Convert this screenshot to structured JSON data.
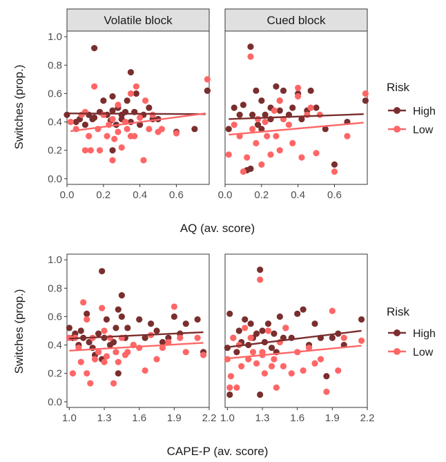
{
  "colors": {
    "high": "#7a2e2e",
    "low": "#ff6666",
    "strip_fill": "#e0e0e0",
    "panel_border": "#333333",
    "tick_text": "#4d4d4d",
    "axis_text": "#1a1a1a"
  },
  "legend_title": "Risk",
  "legend_items": [
    "High",
    "Low"
  ],
  "y_axis_label": "Switches (prop.)",
  "y_ticks": [
    "0.0",
    "0.2",
    "0.4",
    "0.6",
    "0.8",
    "1.0"
  ],
  "chart_data": [
    {
      "type": "scatter",
      "xlabel": "AQ (av. score)",
      "ylabel": "Switches (prop.)",
      "xlim": [
        0.0,
        0.78
      ],
      "ylim": [
        -0.04,
        1.04
      ],
      "x_ticks": [
        "0.0",
        "0.2",
        "0.4",
        "0.6"
      ],
      "x_tick_values": [
        0.0,
        0.2,
        0.4,
        0.6
      ],
      "facets": [
        "Volatile block",
        "Cued block"
      ],
      "legend": {
        "title": "Risk",
        "placement": "right"
      },
      "grid": false,
      "panels": [
        {
          "facet": "Volatile block",
          "series": [
            {
              "name": "High",
              "x": [
                0.0,
                0.05,
                0.07,
                0.1,
                0.12,
                0.15,
                0.15,
                0.18,
                0.2,
                0.22,
                0.24,
                0.25,
                0.25,
                0.27,
                0.28,
                0.3,
                0.3,
                0.32,
                0.33,
                0.35,
                0.35,
                0.37,
                0.38,
                0.4,
                0.42,
                0.45,
                0.47,
                0.5,
                0.6,
                0.7,
                0.77,
                0.77,
                0.14,
                0.25
              ],
              "y": [
                0.45,
                0.4,
                0.42,
                0.38,
                0.45,
                0.92,
                0.43,
                0.47,
                0.55,
                0.45,
                0.41,
                0.58,
                0.48,
                0.38,
                0.5,
                0.45,
                0.42,
                0.47,
                0.55,
                0.75,
                0.4,
                0.47,
                0.6,
                0.38,
                0.45,
                0.5,
                0.42,
                0.42,
                0.33,
                0.35,
                0.62,
                0.62,
                0.42,
                0.2
              ],
              "trend": [
                [
                  0.0,
                  0.46
                ],
                [
                  0.76,
                  0.455
                ]
              ]
            },
            {
              "name": "Low",
              "x": [
                0.02,
                0.05,
                0.08,
                0.1,
                0.12,
                0.13,
                0.15,
                0.17,
                0.18,
                0.2,
                0.22,
                0.23,
                0.25,
                0.26,
                0.28,
                0.3,
                0.32,
                0.33,
                0.35,
                0.37,
                0.38,
                0.4,
                0.42,
                0.43,
                0.45,
                0.47,
                0.5,
                0.52,
                0.6,
                0.77,
                0.1,
                0.25,
                0.35,
                0.28
              ],
              "y": [
                0.4,
                0.35,
                0.45,
                0.2,
                0.3,
                0.2,
                0.65,
                0.35,
                0.2,
                0.45,
                0.3,
                0.38,
                0.13,
                0.28,
                0.52,
                0.22,
                0.4,
                0.35,
                0.6,
                0.3,
                0.65,
                0.43,
                0.13,
                0.55,
                0.35,
                0.45,
                0.33,
                0.35,
                0.32,
                0.7,
                0.47,
                0.42,
                0.3,
                0.33
              ],
              "trend": [
                [
                  0.02,
                  0.335
                ],
                [
                  0.76,
                  0.46
                ]
              ]
            }
          ]
        },
        {
          "facet": "Cued block",
          "series": [
            {
              "name": "High",
              "x": [
                0.02,
                0.05,
                0.08,
                0.1,
                0.12,
                0.14,
                0.15,
                0.17,
                0.18,
                0.2,
                0.22,
                0.25,
                0.25,
                0.28,
                0.3,
                0.3,
                0.32,
                0.35,
                0.37,
                0.4,
                0.42,
                0.45,
                0.47,
                0.5,
                0.55,
                0.6,
                0.67,
                0.77,
                0.14,
                0.2
              ],
              "y": [
                0.35,
                0.5,
                0.45,
                0.52,
                0.06,
                0.93,
                0.45,
                0.62,
                0.38,
                0.55,
                0.45,
                0.5,
                0.42,
                0.65,
                0.48,
                0.55,
                0.62,
                0.45,
                0.5,
                0.6,
                0.42,
                0.48,
                0.62,
                0.5,
                0.35,
                0.1,
                0.4,
                0.55,
                0.07,
                0.35
              ],
              "trend": [
                [
                  0.02,
                  0.42
                ],
                [
                  0.76,
                  0.455
                ]
              ]
            },
            {
              "name": "Low",
              "x": [
                0.02,
                0.05,
                0.1,
                0.12,
                0.14,
                0.15,
                0.17,
                0.2,
                0.22,
                0.23,
                0.25,
                0.27,
                0.28,
                0.3,
                0.32,
                0.35,
                0.37,
                0.4,
                0.42,
                0.45,
                0.47,
                0.5,
                0.52,
                0.6,
                0.67,
                0.77,
                0.08,
                0.18,
                0.3,
                0.4
              ],
              "y": [
                0.17,
                0.38,
                0.05,
                0.15,
                0.86,
                0.35,
                0.25,
                0.1,
                0.4,
                0.3,
                0.17,
                0.48,
                0.3,
                0.55,
                0.42,
                0.38,
                0.25,
                0.64,
                0.15,
                0.45,
                0.5,
                0.18,
                0.45,
                0.05,
                0.3,
                0.6,
                0.3,
                0.42,
                0.2,
                0.58
              ],
              "trend": [
                [
                  0.02,
                  0.31
                ],
                [
                  0.76,
                  0.395
                ]
              ]
            }
          ]
        }
      ]
    },
    {
      "type": "scatter",
      "xlabel": "CAPE-P (av. score)",
      "ylabel": "Switches (prop.)",
      "xlim": [
        0.98,
        2.2
      ],
      "ylim": [
        -0.04,
        1.04
      ],
      "x_ticks": [
        "1.0",
        "1.3",
        "1.6",
        "1.9",
        "2.2"
      ],
      "x_tick_values": [
        1.0,
        1.3,
        1.6,
        1.9,
        2.2
      ],
      "legend": {
        "title": "Risk",
        "placement": "right"
      },
      "grid": false,
      "panels": [
        {
          "facet": "",
          "series": [
            {
              "name": "High",
              "x": [
                1.0,
                1.03,
                1.05,
                1.08,
                1.1,
                1.12,
                1.15,
                1.17,
                1.2,
                1.22,
                1.25,
                1.28,
                1.3,
                1.32,
                1.35,
                1.38,
                1.4,
                1.42,
                1.45,
                1.45,
                1.48,
                1.5,
                1.55,
                1.6,
                1.65,
                1.7,
                1.75,
                1.8,
                1.85,
                1.9,
                1.95,
                2.0,
                2.1,
                2.15,
                1.28,
                1.42
              ],
              "y": [
                0.52,
                0.45,
                0.48,
                0.4,
                0.5,
                0.45,
                0.62,
                0.42,
                0.38,
                0.33,
                0.48,
                0.92,
                0.45,
                0.58,
                0.4,
                0.42,
                0.52,
                0.2,
                0.75,
                0.6,
                0.45,
                0.52,
                0.4,
                0.58,
                0.45,
                0.55,
                0.5,
                0.42,
                0.45,
                0.6,
                0.48,
                0.55,
                0.58,
                0.35,
                0.3,
                0.65
              ],
              "trend": [
                [
                  1.0,
                  0.445
                ],
                [
                  2.15,
                  0.49
                ]
              ]
            },
            {
              "name": "Low",
              "x": [
                1.0,
                1.03,
                1.05,
                1.08,
                1.1,
                1.12,
                1.15,
                1.18,
                1.2,
                1.22,
                1.25,
                1.28,
                1.3,
                1.32,
                1.35,
                1.38,
                1.4,
                1.42,
                1.45,
                1.48,
                1.5,
                1.55,
                1.6,
                1.65,
                1.7,
                1.75,
                1.8,
                1.85,
                1.9,
                1.95,
                2.0,
                2.1,
                2.15,
                1.15,
                1.3
              ],
              "y": [
                0.45,
                0.2,
                0.45,
                0.38,
                0.28,
                0.7,
                0.58,
                0.13,
                0.45,
                0.3,
                0.35,
                0.66,
                0.28,
                0.32,
                0.45,
                0.13,
                0.35,
                0.28,
                0.45,
                0.33,
                0.35,
                0.4,
                0.38,
                0.22,
                0.47,
                0.3,
                0.38,
                0.42,
                0.67,
                0.45,
                0.35,
                0.45,
                0.33,
                0.2,
                0.5
              ],
              "trend": [
                [
                  1.0,
                  0.36
                ],
                [
                  2.15,
                  0.415
                ]
              ]
            }
          ]
        },
        {
          "facet": "",
          "series": [
            {
              "name": "High",
              "x": [
                1.0,
                1.02,
                1.05,
                1.08,
                1.1,
                1.12,
                1.15,
                1.18,
                1.2,
                1.22,
                1.25,
                1.28,
                1.3,
                1.32,
                1.35,
                1.38,
                1.4,
                1.42,
                1.45,
                1.48,
                1.5,
                1.55,
                1.6,
                1.65,
                1.7,
                1.75,
                1.8,
                1.85,
                1.9,
                1.95,
                2.0,
                2.15,
                1.02,
                1.28
              ],
              "y": [
                0.38,
                0.62,
                0.45,
                0.35,
                0.5,
                0.42,
                0.58,
                0.4,
                0.55,
                0.45,
                0.48,
                0.93,
                0.5,
                0.42,
                0.55,
                0.38,
                0.48,
                0.35,
                0.6,
                0.45,
                0.52,
                0.45,
                0.62,
                0.65,
                0.4,
                0.55,
                0.45,
                0.18,
                0.45,
                0.48,
                0.4,
                0.58,
                0.05,
                0.05
              ],
              "trend": [
                [
                  1.0,
                  0.385
                ],
                [
                  2.15,
                  0.5
                ]
              ]
            },
            {
              "name": "Low",
              "x": [
                1.0,
                1.03,
                1.05,
                1.08,
                1.1,
                1.12,
                1.15,
                1.18,
                1.2,
                1.22,
                1.25,
                1.28,
                1.3,
                1.32,
                1.35,
                1.38,
                1.4,
                1.42,
                1.45,
                1.48,
                1.5,
                1.55,
                1.6,
                1.65,
                1.7,
                1.75,
                1.8,
                1.85,
                1.9,
                1.95,
                2.0,
                2.15,
                1.02,
                1.3
              ],
              "y": [
                0.3,
                0.18,
                0.45,
                0.1,
                0.4,
                0.25,
                0.52,
                0.3,
                0.45,
                0.35,
                0.27,
                0.86,
                0.35,
                0.2,
                0.5,
                0.25,
                0.3,
                0.1,
                0.42,
                0.25,
                0.52,
                0.2,
                0.35,
                0.22,
                0.38,
                0.27,
                0.3,
                0.07,
                0.64,
                0.22,
                0.45,
                0.43,
                0.1,
                0.33
              ],
              "trend": [
                [
                  1.0,
                  0.305
                ],
                [
                  2.15,
                  0.395
                ]
              ]
            }
          ]
        }
      ]
    }
  ]
}
